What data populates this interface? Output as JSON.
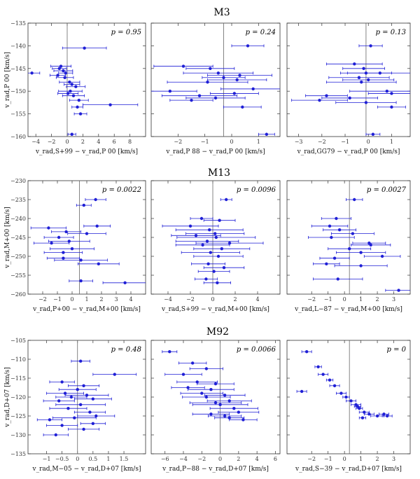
{
  "figure": {
    "rows": [
      {
        "title": "M3",
        "ylabel": "v_rad,P 00 [km/s]",
        "yticks": [
          -135,
          -140,
          -145,
          -150,
          -155,
          -160
        ]
      },
      {
        "title": "M13",
        "ylabel": "v_rad,M+00 [km/s]",
        "yticks": [
          -230,
          -235,
          -240,
          -245,
          -250,
          -255,
          -260
        ]
      },
      {
        "title": "M92",
        "ylabel": "v_rad,D+07 [km/s]",
        "yticks": [
          -105,
          -110,
          -115,
          -120,
          -125,
          -130,
          -135
        ]
      }
    ]
  },
  "chart_data": [
    {
      "type": "scatter",
      "panel": "M3-1",
      "title": "M3",
      "pvalue": "p = 0.95",
      "xlabel": "v_rad,S+99 − v_rad,P 00 [km/s]",
      "ylabel": "v_rad,P 00 [km/s]",
      "xlim": [
        -5,
        10
      ],
      "ylim": [
        -160,
        -135
      ],
      "xticks": [
        -4,
        -2,
        0,
        2,
        4,
        6,
        8
      ],
      "vline": 0,
      "x": [
        2.2,
        -4.5,
        -0.8,
        -1.0,
        -0.5,
        -1.2,
        -0.3,
        0.3,
        0.6,
        1.1,
        -0.2,
        0.4,
        0.1,
        0.8,
        1.5,
        5.5,
        1.3,
        1.7,
        0.6
      ],
      "y": [
        -140.5,
        -146.0,
        -144.5,
        -145.0,
        -145.5,
        -146.5,
        -147.0,
        -148.0,
        -148.5,
        -149.0,
        -146.0,
        -150.0,
        -150.5,
        -151.0,
        -152.0,
        -153.0,
        -153.5,
        -155.0,
        -159.5
      ],
      "xerr": [
        2.8,
        1.0,
        1.3,
        0.9,
        1.2,
        1.0,
        1.1,
        1.3,
        1.0,
        1.2,
        0.9,
        1.5,
        1.3,
        1.4,
        1.2,
        3.5,
        0.7,
        0.8,
        0.5
      ]
    },
    {
      "type": "scatter",
      "panel": "M3-2",
      "pvalue": "p = 0.24",
      "xlabel": "v_rad,P 88 − v_rad,P 00 [km/s]",
      "xlim": [
        -3,
        1.8
      ],
      "ylim": [
        -160,
        -135
      ],
      "xticks": [
        -2,
        -1,
        0,
        1
      ],
      "vline": -0.3,
      "x": [
        0.6,
        -1.8,
        -0.8,
        -0.5,
        0.3,
        -0.3,
        0.2,
        -0.9,
        -2.3,
        -1.2,
        0.1,
        -0.6,
        0.8,
        -1.5,
        0.4,
        1.3
      ],
      "y": [
        -140.0,
        -144.5,
        -145.0,
        -146.0,
        -146.5,
        -147.0,
        -147.5,
        -148.0,
        -150.0,
        -151.0,
        -150.5,
        -151.5,
        -149.5,
        -152.0,
        -153.5,
        -159.5
      ],
      "xerr": [
        0.6,
        1.1,
        0.9,
        1.3,
        1.2,
        0.8,
        1.1,
        1.5,
        1.0,
        1.4,
        0.9,
        1.1,
        1.2,
        0.8,
        0.7,
        0.3
      ]
    },
    {
      "type": "scatter",
      "panel": "M3-3",
      "pvalue": "p = 0.13",
      "xlabel": "v_rad,GG79 − v_rad,P 00 [km/s]",
      "xlim": [
        -3.5,
        1.8
      ],
      "ylim": [
        -160,
        -135
      ],
      "xticks": [
        -3,
        -2,
        -1,
        0,
        1
      ],
      "vline": -0.1,
      "x": [
        0.1,
        -0.6,
        -0.2,
        -0.1,
        0.5,
        -0.4,
        0.0,
        -0.3,
        -1.8,
        -0.8,
        1.0,
        -2.1,
        0.8,
        -0.1,
        1.0,
        0.2
      ],
      "y": [
        -140.0,
        -144.0,
        -145.0,
        -146.0,
        -146.0,
        -147.0,
        -147.5,
        -148.0,
        -151.0,
        -151.5,
        -150.5,
        -152.0,
        -150.0,
        -152.5,
        -153.5,
        -159.5
      ],
      "xerr": [
        0.5,
        1.2,
        0.9,
        1.1,
        1.4,
        1.3,
        1.1,
        1.5,
        0.9,
        1.2,
        1.0,
        1.2,
        1.6,
        1.3,
        0.6,
        0.3
      ]
    },
    {
      "type": "scatter",
      "panel": "M13-1",
      "title": "M13",
      "pvalue": "p = 0.0022",
      "xlabel": "v_rad,P+00 − v_rad,M+00 [km/s]",
      "ylabel": "v_rad,M+00 [km/s]",
      "xlim": [
        -3,
        5
      ],
      "ylim": [
        -260,
        -230
      ],
      "xticks": [
        -2,
        -1,
        0,
        1,
        2,
        3,
        4
      ],
      "vline": 0.5,
      "x": [
        1.6,
        0.8,
        -1.6,
        1.7,
        -0.4,
        1.0,
        -0.9,
        -0.2,
        -1.4,
        0.0,
        -0.6,
        -0.6,
        0.6,
        1.8,
        0.6,
        3.6
      ],
      "y": [
        -235.0,
        -236.5,
        -242.5,
        -242.0,
        -243.5,
        -244.0,
        -245.0,
        -246.0,
        -246.5,
        -248.0,
        -249.0,
        -250.5,
        -251.0,
        -252.0,
        -256.5,
        -257.0
      ],
      "xerr": [
        0.7,
        0.5,
        1.2,
        0.9,
        1.0,
        1.3,
        1.0,
        1.4,
        1.2,
        1.5,
        1.3,
        1.1,
        1.8,
        1.4,
        0.8,
        1.5
      ]
    },
    {
      "type": "scatter",
      "panel": "M13-2",
      "pvalue": "p = 0.0096",
      "xlabel": "v_rad,S+99 − v_rad,M+00 [km/s]",
      "xlim": [
        -5.5,
        6
      ],
      "ylim": [
        -260,
        -230
      ],
      "xticks": [
        -4,
        -2,
        0,
        2,
        4
      ],
      "vline": 0.0,
      "x": [
        1.2,
        -1.0,
        0.6,
        -2.0,
        -0.3,
        0.2,
        -1.5,
        0.3,
        -0.5,
        1.5,
        -0.9,
        0.8,
        -0.2,
        0.5,
        -0.4,
        1.0,
        0.1,
        -0.6,
        0.4
      ],
      "y": [
        -235.0,
        -240.0,
        -240.5,
        -242.0,
        -243.0,
        -244.0,
        -244.5,
        -245.0,
        -246.0,
        -246.5,
        -247.0,
        -248.0,
        -249.0,
        -250.0,
        -252.0,
        -253.0,
        -254.0,
        -256.0,
        -257.0
      ],
      "xerr": [
        0.5,
        1.0,
        1.4,
        2.5,
        3.0,
        2.6,
        2.2,
        3.5,
        2.8,
        3.0,
        2.4,
        2.5,
        2.6,
        2.2,
        1.5,
        1.8,
        1.4,
        1.0,
        1.2
      ]
    },
    {
      "type": "scatter",
      "panel": "M13-3",
      "pvalue": "p = 0.0027",
      "xlabel": "v_rad,L−87 − v_rad,M+00 [km/s]",
      "xlim": [
        -3.5,
        4
      ],
      "ylim": [
        -260,
        -230
      ],
      "xticks": [
        -2,
        -1,
        0,
        1,
        2,
        3
      ],
      "vline": 0.3,
      "x": [
        0.6,
        -0.5,
        -0.9,
        -0.3,
        0.5,
        -0.8,
        1.5,
        1.6,
        0.3,
        1.0,
        2.3,
        -0.6,
        -1.1,
        1.0,
        -0.4,
        3.3
      ],
      "y": [
        -235.0,
        -240.0,
        -242.0,
        -243.0,
        -244.0,
        -245.0,
        -246.5,
        -247.0,
        -248.0,
        -249.0,
        -250.0,
        -250.5,
        -252.0,
        -252.5,
        -256.0,
        -259.0
      ],
      "xerr": [
        0.5,
        0.9,
        1.1,
        1.0,
        1.3,
        1.4,
        1.0,
        1.2,
        1.3,
        1.5,
        1.1,
        0.9,
        0.8,
        1.6,
        1.5,
        0.8
      ]
    },
    {
      "type": "scatter",
      "panel": "M92-1",
      "title": "M92",
      "pvalue": "p = 0.48",
      "xlabel": "v_rad,M−05 − v_rad,D+07 [km/s]",
      "ylabel": "v_rad,D+07 [km/s]",
      "xlim": [
        -1.6,
        2.2
      ],
      "ylim": [
        -135,
        -105
      ],
      "xticks": [
        -1.0,
        -0.5,
        0.0,
        0.5,
        1.0,
        1.5
      ],
      "vline": 0.0,
      "x": [
        0.1,
        1.2,
        -0.5,
        0.2,
        0.0,
        -0.4,
        0.3,
        -0.2,
        0.5,
        -0.6,
        0.1,
        -0.3,
        0.4,
        0.6,
        -0.1,
        -0.9,
        0.5,
        -0.5,
        0.2,
        -0.7
      ],
      "y": [
        -110.5,
        -114.0,
        -116.0,
        -117.0,
        -118.0,
        -119.0,
        -119.5,
        -120.0,
        -120.5,
        -121.0,
        -122.0,
        -123.0,
        -124.0,
        -125.0,
        -125.5,
        -126.0,
        -127.0,
        -127.5,
        -128.5,
        -130.0
      ],
      "xerr": [
        0.3,
        0.7,
        0.4,
        0.5,
        0.6,
        0.6,
        0.7,
        0.5,
        0.6,
        0.5,
        0.8,
        0.6,
        0.5,
        0.6,
        0.7,
        0.4,
        0.4,
        0.5,
        0.5,
        0.4
      ]
    },
    {
      "type": "scatter",
      "panel": "M92-2",
      "pvalue": "p = 0.0066",
      "xlabel": "v_rad,P−88 − v_rad,D+07 [km/s]",
      "xlim": [
        -7.5,
        6.5
      ],
      "ylim": [
        -135,
        -105
      ],
      "xticks": [
        -6,
        -4,
        -2,
        0,
        2,
        4,
        6
      ],
      "vline": 0.0,
      "x": [
        -5.5,
        -3.0,
        -1.5,
        -4.0,
        -2.5,
        -0.5,
        -3.5,
        -1.0,
        -2.0,
        0.5,
        -1.5,
        1.0,
        -0.5,
        0.0,
        1.5,
        2.0,
        -1.0,
        0.5,
        1.0,
        2.5
      ],
      "y": [
        -108.0,
        -111.0,
        -112.5,
        -114.0,
        -116.0,
        -116.5,
        -117.5,
        -118.0,
        -119.0,
        -119.5,
        -120.0,
        -121.0,
        -121.5,
        -122.0,
        -123.0,
        -124.0,
        -124.5,
        -125.0,
        -125.5,
        -126.0
      ],
      "xerr": [
        0.8,
        1.5,
        1.8,
        2.0,
        2.2,
        2.0,
        1.8,
        2.5,
        2.3,
        2.2,
        2.6,
        2.4,
        2.8,
        3.0,
        2.6,
        2.2,
        2.0,
        1.8,
        1.6,
        1.5
      ]
    },
    {
      "type": "scatter",
      "panel": "M92-3",
      "pvalue": "p = 0",
      "xlabel": "v_rad,S−39 − v_rad,D+07 [km/s]",
      "xlim": [
        -3.5,
        4
      ],
      "ylim": [
        -135,
        -105
      ],
      "xticks": [
        -2,
        -1,
        0,
        1,
        2,
        3
      ],
      "vline": 0.3,
      "x": [
        -2.3,
        -1.6,
        -1.3,
        -0.9,
        -0.6,
        -2.6,
        -0.2,
        0.1,
        0.4,
        0.7,
        0.9,
        1.2,
        1.5,
        2.0,
        2.4,
        2.6,
        1.1,
        0.8
      ],
      "y": [
        -108.0,
        -112.0,
        -114.0,
        -115.5,
        -117.0,
        -118.5,
        -119.0,
        -120.0,
        -121.0,
        -122.0,
        -123.0,
        -124.0,
        -124.5,
        -125.0,
        -124.5,
        -125.0,
        -125.5,
        -122.5
      ],
      "xerr": [
        0.3,
        0.2,
        0.3,
        0.2,
        0.3,
        0.3,
        0.3,
        0.2,
        0.3,
        0.3,
        0.2,
        0.3,
        0.3,
        0.4,
        0.3,
        0.3,
        0.2,
        0.2
      ]
    }
  ]
}
